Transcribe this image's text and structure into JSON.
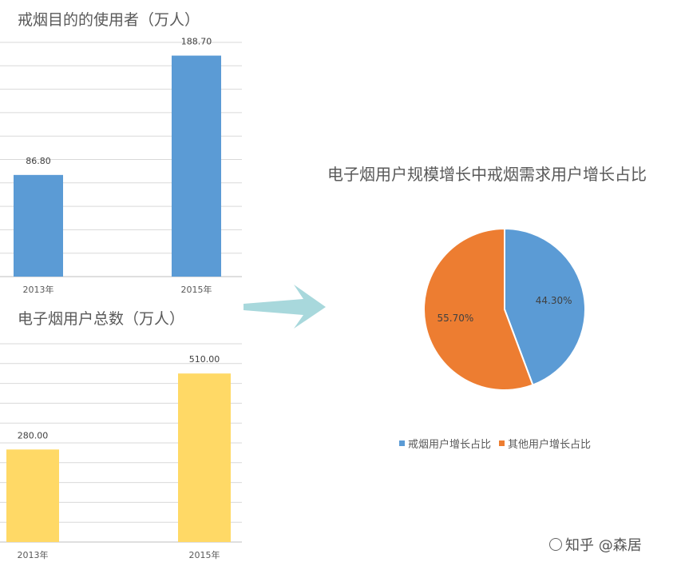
{
  "chart_data": [
    {
      "type": "bar",
      "title": "戒烟目的的使用者（万人）",
      "categories": [
        "2013年",
        "2015年"
      ],
      "values": [
        86.8,
        188.7
      ],
      "value_labels": [
        "86.80",
        "188.70"
      ],
      "ylim": [
        0,
        200
      ],
      "grid": true,
      "color": "#5b9bd5"
    },
    {
      "type": "bar",
      "title": "电子烟用户总数（万人）",
      "categories": [
        "2013年",
        "2015年"
      ],
      "values": [
        280.0,
        510.0
      ],
      "value_labels": [
        "280.00",
        "510.00"
      ],
      "ylim": [
        0,
        600
      ],
      "grid": true,
      "color": "#ffd966"
    },
    {
      "type": "pie",
      "title": "电子烟用户规模增长中戒烟需求用户增长占比",
      "labels": [
        "戒烟用户增长占比",
        "其他用户增长占比"
      ],
      "values": [
        44.3,
        55.7
      ],
      "value_labels": [
        "44.30%",
        "55.70%"
      ],
      "colors": [
        "#5b9bd5",
        "#ed7d31"
      ],
      "legend": "bottom"
    }
  ],
  "watermark": {
    "text": "知乎 @森居",
    "icon": "wechat-icon"
  },
  "arrow_color": "#a8d8dc"
}
